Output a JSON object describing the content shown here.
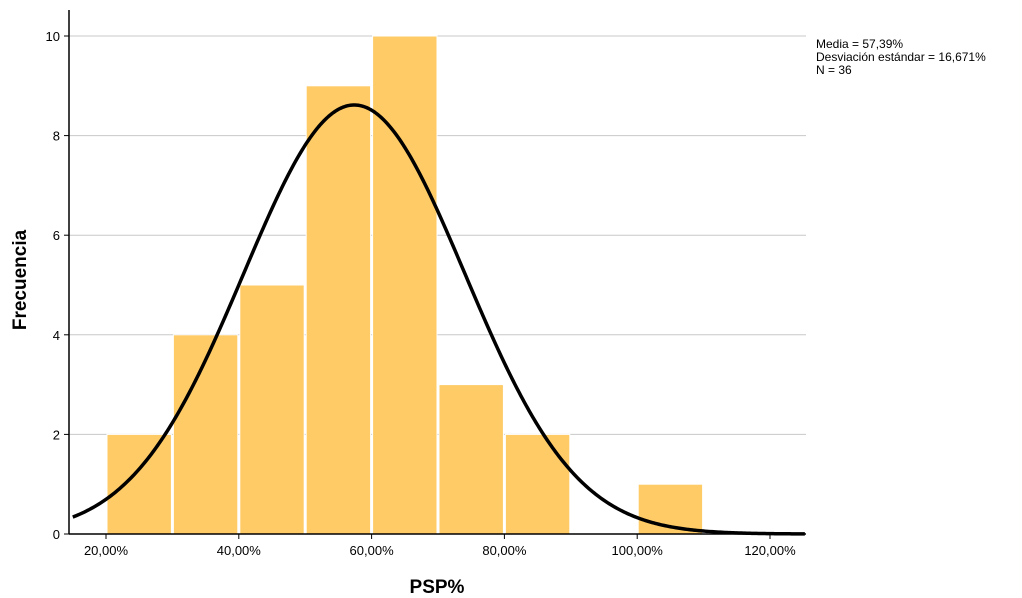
{
  "chart_data": {
    "type": "bar",
    "subtype": "histogram",
    "xlabel": "PSP%",
    "ylabel": "Frecuencia",
    "x_ticks": [
      20,
      40,
      60,
      80,
      100,
      120
    ],
    "x_tick_labels": [
      "20,00%",
      "40,00%",
      "60,00%",
      "80,00%",
      "100,00%",
      "120,00%"
    ],
    "y_ticks": [
      0,
      2,
      4,
      6,
      8,
      10
    ],
    "y_tick_labels": [
      "0",
      "2",
      "4",
      "6",
      "8",
      "10"
    ],
    "xlim": [
      15,
      145
    ],
    "ylim": [
      0,
      10.5
    ],
    "bins": [
      {
        "start": 20,
        "end": 30,
        "count": 2
      },
      {
        "start": 30,
        "end": 40,
        "count": 4
      },
      {
        "start": 40,
        "end": 50,
        "count": 5
      },
      {
        "start": 50,
        "end": 60,
        "count": 9
      },
      {
        "start": 60,
        "end": 70,
        "count": 10
      },
      {
        "start": 70,
        "end": 80,
        "count": 3
      },
      {
        "start": 80,
        "end": 90,
        "count": 2
      },
      {
        "start": 90,
        "end": 100,
        "count": 0
      },
      {
        "start": 100,
        "end": 110,
        "count": 1
      }
    ],
    "normal_curve": {
      "mean": 57.39,
      "sd": 16.671,
      "n": 36
    },
    "stats_lines": [
      "Media = 57,39%",
      "Desviación estándar = 16,671%",
      "N = 36"
    ],
    "grid": "horizontal",
    "colors": {
      "bar": "#FECB66",
      "bar_edge": "#ffffff",
      "curve": "#000000",
      "grid": "#c8c8c8",
      "axis": "#000000"
    }
  }
}
